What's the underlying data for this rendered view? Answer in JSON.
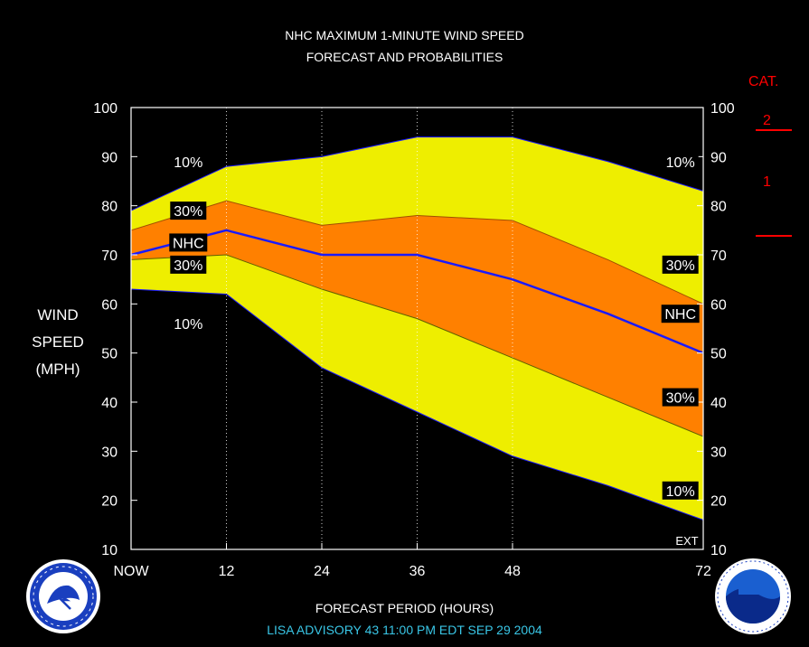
{
  "header": {
    "title_line1": "NHC MAXIMUM 1-MINUTE WIND SPEED",
    "title_line2": "FORECAST AND PROBABILITIES"
  },
  "axes": {
    "ylabel_lines": [
      "WIND",
      "SPEED",
      "(MPH)"
    ],
    "xlabel": "FORECAST PERIOD (HOURS)",
    "ext_label": "EXT"
  },
  "category": {
    "title": "CAT.",
    "labels": [
      "2",
      "1"
    ],
    "color": "#ff0000"
  },
  "footer": {
    "advisory": "LISA   ADVISORY  43 11:00 PM EDT SEP 29 2004"
  },
  "colors": {
    "band_10": "#eeee00",
    "band_30": "#ff8000",
    "nhc_line": "#1a1aff",
    "background": "#000000",
    "footer_text": "#39c6e6"
  },
  "chart_data": {
    "type": "area",
    "title": "NHC MAXIMUM 1-MINUTE WIND SPEED FORECAST AND PROBABILITIES",
    "xlabel": "FORECAST PERIOD (HOURS)",
    "ylabel": "WIND SPEED (MPH)",
    "xlim": [
      0,
      72
    ],
    "ylim": [
      10,
      100
    ],
    "x_ticks": [
      {
        "value": 0,
        "label": "NOW"
      },
      {
        "value": 12,
        "label": "12"
      },
      {
        "value": 24,
        "label": "24"
      },
      {
        "value": 36,
        "label": "36"
      },
      {
        "value": 48,
        "label": "48"
      },
      {
        "value": 72,
        "label": "72"
      }
    ],
    "y_ticks": [
      10,
      20,
      30,
      40,
      50,
      60,
      70,
      80,
      90,
      100
    ],
    "x": [
      0,
      12,
      24,
      36,
      48,
      60,
      72
    ],
    "series": [
      {
        "name": "10% upper",
        "values": [
          79,
          88,
          90,
          94,
          94,
          89,
          83
        ]
      },
      {
        "name": "30% upper",
        "values": [
          75,
          81,
          76,
          78,
          77,
          69,
          60
        ]
      },
      {
        "name": "NHC",
        "values": [
          70,
          75,
          70,
          70,
          65,
          58,
          50
        ]
      },
      {
        "name": "30% lower",
        "values": [
          69,
          70,
          63,
          57,
          49,
          41,
          33
        ]
      },
      {
        "name": "10% lower",
        "values": [
          63,
          62,
          47,
          38,
          29,
          23,
          16
        ]
      }
    ],
    "band_labels": [
      {
        "text": "10%",
        "x": 10,
        "y": 89
      },
      {
        "text": "30%",
        "x": 10,
        "y": 79
      },
      {
        "text": "NHC",
        "x": 10,
        "y": 72.5
      },
      {
        "text": "30%",
        "x": 10,
        "y": 68
      },
      {
        "text": "10%",
        "x": 10,
        "y": 56
      },
      {
        "text": "10%",
        "x": 96,
        "y": 89
      },
      {
        "text": "30%",
        "x": 96,
        "y": 68
      },
      {
        "text": "NHC",
        "x": 96,
        "y": 58
      },
      {
        "text": "30%",
        "x": 96,
        "y": 41
      },
      {
        "text": "10%",
        "x": 96,
        "y": 22
      }
    ],
    "grid": "dotted vertical at 12, 24, 36, 48 hours",
    "legend": "none"
  }
}
